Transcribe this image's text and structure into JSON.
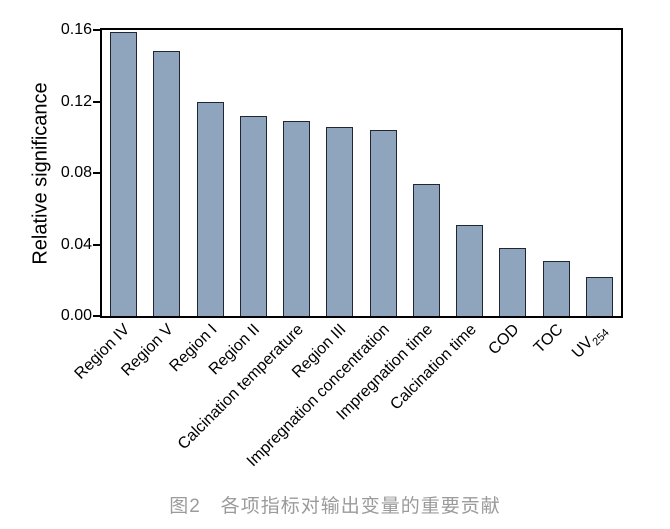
{
  "figure": {
    "caption": "图2　各项指标对输出变量的重要贡献"
  },
  "chart_data": {
    "type": "bar",
    "title": "",
    "xlabel": "",
    "ylabel": "Relative significance",
    "ylim": [
      0,
      0.16
    ],
    "yticks": [
      0,
      0.04,
      0.08,
      0.12,
      0.16
    ],
    "ytick_labels": [
      "0.00",
      "0.04",
      "0.08",
      "0.12",
      "0.16"
    ],
    "grid": false,
    "legend": "none",
    "bar_color": "#8fa4bd",
    "bar_border_color": "#202633",
    "frame": "full-box",
    "categories": [
      "Region IV",
      "Region V",
      "Region I",
      "Region II",
      "Calcination temperature",
      "Region III",
      "Impregnation concentration",
      "Impregnation time",
      "Calcination time",
      "COD",
      "TOC",
      "UV254"
    ],
    "category_display": [
      {
        "label": "Region IV",
        "sub": ""
      },
      {
        "label": "Region V",
        "sub": ""
      },
      {
        "label": "Region I",
        "sub": ""
      },
      {
        "label": "Region II",
        "sub": ""
      },
      {
        "label": "Calcination temperature",
        "sub": ""
      },
      {
        "label": "Region III",
        "sub": ""
      },
      {
        "label": "Impregnation concentration",
        "sub": ""
      },
      {
        "label": "Impregnation time",
        "sub": ""
      },
      {
        "label": "Calcination time",
        "sub": ""
      },
      {
        "label": "COD",
        "sub": ""
      },
      {
        "label": "TOC",
        "sub": ""
      },
      {
        "label": "UV",
        "sub": "254"
      }
    ],
    "values": [
      0.159,
      0.148,
      0.12,
      0.112,
      0.109,
      0.106,
      0.104,
      0.074,
      0.051,
      0.038,
      0.031,
      0.022
    ]
  }
}
